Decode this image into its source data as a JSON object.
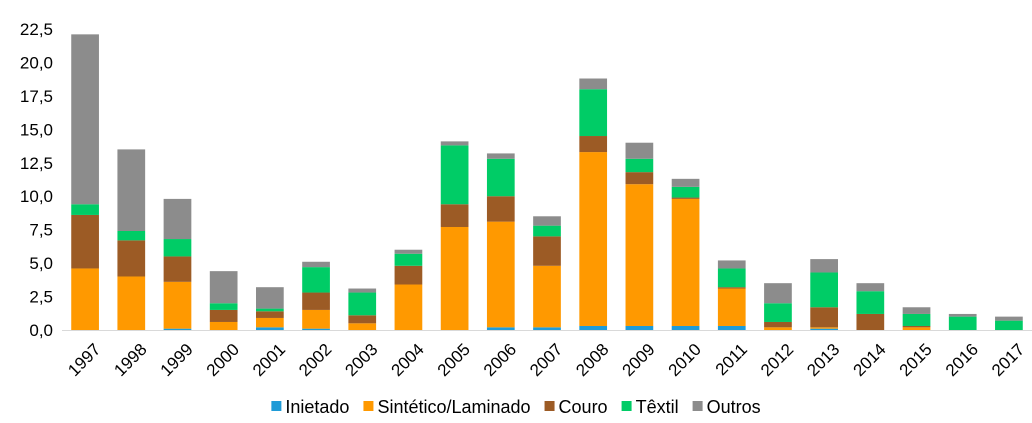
{
  "chart_data": {
    "type": "bar",
    "stacked": true,
    "title": "",
    "xlabel": "",
    "ylabel": "",
    "ylim": [
      0,
      22.5
    ],
    "yticks": [
      "0,0",
      "2,5",
      "5,0",
      "7,5",
      "10,0",
      "12,5",
      "15,0",
      "17,5",
      "20,0",
      "22,5"
    ],
    "grid": false,
    "legend_position": "bottom",
    "categories": [
      "1997",
      "1998",
      "1999",
      "2000",
      "2001",
      "2002",
      "2003",
      "2004",
      "2005",
      "2006",
      "2007",
      "2008",
      "2009",
      "2010",
      "2011",
      "2012",
      "2013",
      "2014",
      "2015",
      "2016",
      "2017"
    ],
    "series": [
      {
        "name": "Inietado",
        "color": "#1f9bd7",
        "values": [
          0,
          0,
          0.1,
          0,
          0.2,
          0.1,
          0,
          0,
          0,
          0.2,
          0.2,
          0.3,
          0.3,
          0.3,
          0.3,
          0,
          0.1,
          0,
          0,
          0,
          0
        ]
      },
      {
        "name": "Sintético/Laminado",
        "color": "#ff9900",
        "values": [
          4.6,
          4.0,
          3.5,
          0.6,
          0.7,
          1.4,
          0.5,
          3.4,
          7.7,
          7.9,
          4.6,
          13.0,
          10.6,
          9.5,
          2.8,
          0.2,
          0.1,
          0,
          0.2,
          0,
          0
        ]
      },
      {
        "name": "Couro",
        "color": "#9c5b25",
        "values": [
          4.0,
          2.7,
          1.9,
          0.9,
          0.5,
          1.3,
          0.6,
          1.4,
          1.7,
          1.9,
          2.2,
          1.2,
          0.9,
          0.1,
          0.1,
          0.4,
          1.5,
          1.2,
          0.1,
          0,
          0
        ]
      },
      {
        "name": "Têxtil",
        "color": "#00cc66",
        "values": [
          0.8,
          0.7,
          1.3,
          0.5,
          0.2,
          1.9,
          1.7,
          0.9,
          4.4,
          2.8,
          0.8,
          3.5,
          1.0,
          0.8,
          1.4,
          1.4,
          2.6,
          1.7,
          0.9,
          1.0,
          0.7
        ]
      },
      {
        "name": "Outros",
        "color": "#8c8c8c",
        "values": [
          12.7,
          6.1,
          3.0,
          2.4,
          1.6,
          0.4,
          0.3,
          0.3,
          0.3,
          0.4,
          0.7,
          0.8,
          1.2,
          0.6,
          0.6,
          1.5,
          1.0,
          0.6,
          0.5,
          0.2,
          0.3
        ]
      }
    ]
  }
}
